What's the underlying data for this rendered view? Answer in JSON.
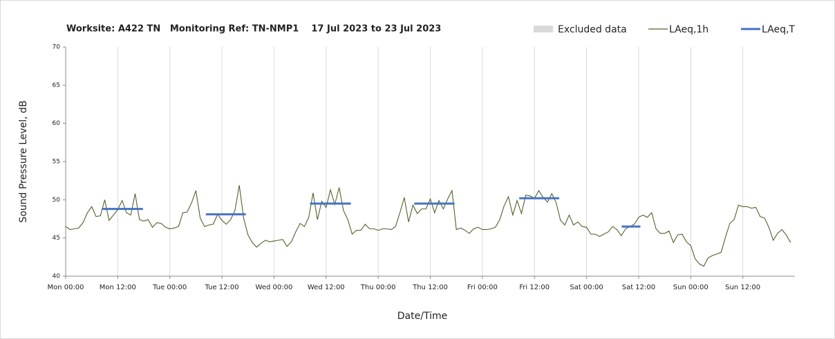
{
  "chart_data": {
    "type": "line",
    "title": "Worksite: A422 TN   Monitoring Ref: TN-NMP1    17 Jul 2023 to 23 Jul 2023",
    "xlabel": "Date/Time",
    "ylabel": "Sound Pressure Level, dB",
    "excluded_legend": {
      "name": "Excluded data",
      "color": "#d9d9d9"
    },
    "xlim": [
      0,
      168
    ],
    "xticks": [
      {
        "value": 0,
        "label": "Mon 00:00"
      },
      {
        "value": 12,
        "label": "Mon 12:00"
      },
      {
        "value": 24,
        "label": "Tue 00:00"
      },
      {
        "value": 36,
        "label": "Tue 12:00"
      },
      {
        "value": 48,
        "label": "Wed 00:00"
      },
      {
        "value": 60,
        "label": "Wed 12:00"
      },
      {
        "value": 72,
        "label": "Thu 00:00"
      },
      {
        "value": 84,
        "label": "Thu 12:00"
      },
      {
        "value": 96,
        "label": "Fri 00:00"
      },
      {
        "value": 108,
        "label": "Fri 12:00"
      },
      {
        "value": 120,
        "label": "Sat 00:00"
      },
      {
        "value": 132,
        "label": "Sat 12:00"
      },
      {
        "value": 144,
        "label": "Sun 00:00"
      },
      {
        "value": 156,
        "label": "Sun 12:00"
      }
    ],
    "ylim": [
      40,
      70
    ],
    "yticks": [
      40,
      45,
      50,
      55,
      60,
      65,
      70
    ],
    "grid": true,
    "x": [
      0,
      1,
      2,
      3,
      4,
      5,
      6,
      7,
      8,
      9,
      10,
      11,
      12,
      13,
      14,
      15,
      16,
      17,
      18,
      19,
      20,
      21,
      22,
      23,
      24,
      25,
      26,
      27,
      28,
      29,
      30,
      31,
      32,
      33,
      34,
      35,
      36,
      37,
      38,
      39,
      40,
      41,
      42,
      43,
      44,
      45,
      46,
      47,
      48,
      49,
      50,
      51,
      52,
      53,
      54,
      55,
      56,
      57,
      58,
      59,
      60,
      61,
      62,
      63,
      64,
      65,
      66,
      67,
      68,
      69,
      70,
      71,
      72,
      73,
      74,
      75,
      76,
      77,
      78,
      79,
      80,
      81,
      82,
      83,
      84,
      85,
      86,
      87,
      88,
      89,
      90,
      91,
      92,
      93,
      94,
      95,
      96,
      97,
      98,
      99,
      100,
      101,
      102,
      103,
      104,
      105,
      106,
      107,
      108,
      109,
      110,
      111,
      112,
      113,
      114,
      115,
      116,
      117,
      118,
      119,
      120,
      121,
      122,
      123,
      124,
      125,
      126,
      127,
      128,
      129,
      130,
      131,
      132,
      133,
      134,
      135,
      136,
      137,
      138,
      139,
      140,
      141,
      142,
      143,
      144,
      145,
      146,
      147,
      148,
      149,
      150,
      151,
      152,
      153,
      154,
      155,
      156,
      157,
      158,
      159,
      160,
      161,
      162,
      163,
      164,
      165,
      166,
      167
    ],
    "series": [
      {
        "name": "LAeq,1h",
        "color": "#4f6228",
        "values": [
          46.5,
          46.1,
          46.2,
          46.3,
          47,
          48.3,
          49.1,
          47.8,
          47.9,
          50,
          47.3,
          48,
          48.7,
          49.9,
          48.3,
          48,
          50.8,
          47.4,
          47.2,
          47.4,
          46.4,
          47,
          46.9,
          46.4,
          46.2,
          46.3,
          46.5,
          48.3,
          48.4,
          49.6,
          51.2,
          47.6,
          46.5,
          46.7,
          46.8,
          48.1,
          47.3,
          46.8,
          47.4,
          48.6,
          51.9,
          47.6,
          45.4,
          44.4,
          43.8,
          44.3,
          44.7,
          44.5,
          44.6,
          44.7,
          44.8,
          43.9,
          44.5,
          45.8,
          46.9,
          46.5,
          47.7,
          50.9,
          47.4,
          49.8,
          49,
          51.3,
          49.4,
          51.6,
          48.6,
          47.4,
          45.5,
          46,
          46,
          46.8,
          46.2,
          46.2,
          46,
          46.2,
          46.2,
          46.1,
          46.5,
          48.3,
          50.3,
          47.1,
          49.3,
          48.2,
          48.8,
          48.8,
          50.1,
          48.3,
          49.9,
          48.8,
          50.1,
          51.2,
          46.1,
          46.3,
          46,
          45.6,
          46.2,
          46.4,
          46.1,
          46.1,
          46.2,
          46.4,
          47.4,
          49.2,
          50.4,
          48,
          49.9,
          48.2,
          50.6,
          50.5,
          50.2,
          51.2,
          50.3,
          49.7,
          50.8,
          49.6,
          47.3,
          46.7,
          48,
          46.7,
          47.1,
          46.5,
          46.4,
          45.5,
          45.5,
          45.2,
          45.5,
          45.8,
          46.5,
          46.1,
          45.3,
          46.2,
          46.5,
          46.8,
          47.7,
          48,
          47.7,
          48.3,
          46.2,
          45.6,
          45.6,
          45.9,
          44.4,
          45.4,
          45.5,
          44.5,
          44,
          42.3,
          41.6,
          41.3,
          42.4,
          42.7,
          42.9,
          43.1,
          45.1,
          46.9,
          47.4,
          49.3,
          49.1,
          49.1,
          48.9,
          49,
          47.8,
          47.6,
          46.4,
          44.7,
          45.6,
          46.1,
          45.4,
          44.4
        ]
      },
      {
        "name": "LAeq,T",
        "color": "#4472c4",
        "segments": [
          {
            "x": [
              8.5,
              17.8
            ],
            "value": 48.8
          },
          {
            "x": [
              32.3,
              41.5
            ],
            "value": 48.1
          },
          {
            "x": [
              56.3,
              65.7
            ],
            "value": 49.5
          },
          {
            "x": [
              80.3,
              89.6
            ],
            "value": 49.5
          },
          {
            "x": [
              104.5,
              113.7
            ],
            "value": 50.2
          },
          {
            "x": [
              128.1,
              132.4
            ],
            "value": 46.5
          }
        ]
      }
    ]
  }
}
